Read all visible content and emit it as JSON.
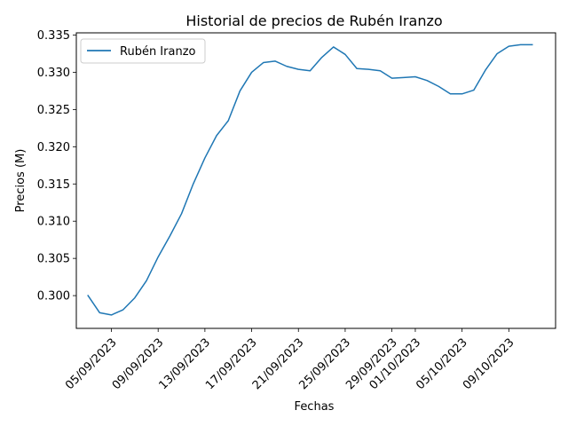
{
  "chart_data": {
    "type": "line",
    "title": "Historial de precios de Rubén Iranzo",
    "xlabel": "Fechas",
    "ylabel": "Precios (M)",
    "x_tick_labels": [
      "05/09/2023",
      "09/09/2023",
      "13/09/2023",
      "17/09/2023",
      "21/09/2023",
      "25/09/2023",
      "29/09/2023",
      "01/10/2023",
      "05/10/2023",
      "09/10/2023"
    ],
    "x_tick_dates": [
      "2023-09-05",
      "2023-09-09",
      "2023-09-13",
      "2023-09-17",
      "2023-09-21",
      "2023-09-25",
      "2023-09-29",
      "2023-10-01",
      "2023-10-05",
      "2023-10-09"
    ],
    "y_ticks": [
      0.3,
      0.305,
      0.31,
      0.315,
      0.32,
      0.325,
      0.33,
      0.335
    ],
    "y_tick_labels": [
      "0.300",
      "0.305",
      "0.310",
      "0.315",
      "0.320",
      "0.325",
      "0.330",
      "0.335"
    ],
    "xlim": [
      "2023-09-02",
      "2023-10-13"
    ],
    "ylim": [
      0.2956,
      0.3353
    ],
    "grid": false,
    "legend_position": "upper left",
    "series": [
      {
        "name": "Rubén Iranzo",
        "color": "#1f77b4",
        "x": [
          "2023-09-03",
          "2023-09-04",
          "2023-09-05",
          "2023-09-06",
          "2023-09-07",
          "2023-09-08",
          "2023-09-09",
          "2023-09-10",
          "2023-09-11",
          "2023-09-12",
          "2023-09-13",
          "2023-09-14",
          "2023-09-15",
          "2023-09-16",
          "2023-09-17",
          "2023-09-18",
          "2023-09-19",
          "2023-09-20",
          "2023-09-21",
          "2023-09-22",
          "2023-09-23",
          "2023-09-24",
          "2023-09-25",
          "2023-09-26",
          "2023-09-27",
          "2023-09-28",
          "2023-09-29",
          "2023-09-30",
          "2023-10-01",
          "2023-10-02",
          "2023-10-03",
          "2023-10-04",
          "2023-10-05",
          "2023-10-06",
          "2023-10-07",
          "2023-10-08",
          "2023-10-09",
          "2023-10-10",
          "2023-10-11"
        ],
        "values": [
          0.3,
          0.2977,
          0.2974,
          0.2981,
          0.2997,
          0.302,
          0.3052,
          0.308,
          0.311,
          0.315,
          0.3185,
          0.3215,
          0.3235,
          0.3275,
          0.33,
          0.3313,
          0.3315,
          0.3308,
          0.3304,
          0.3302,
          0.332,
          0.3334,
          0.3324,
          0.3305,
          0.3304,
          0.3302,
          0.3292,
          0.3293,
          0.3294,
          0.3289,
          0.3281,
          0.3271,
          0.3271,
          0.3276,
          0.3303,
          0.3325,
          0.3335,
          0.3337,
          0.3337
        ]
      }
    ]
  }
}
